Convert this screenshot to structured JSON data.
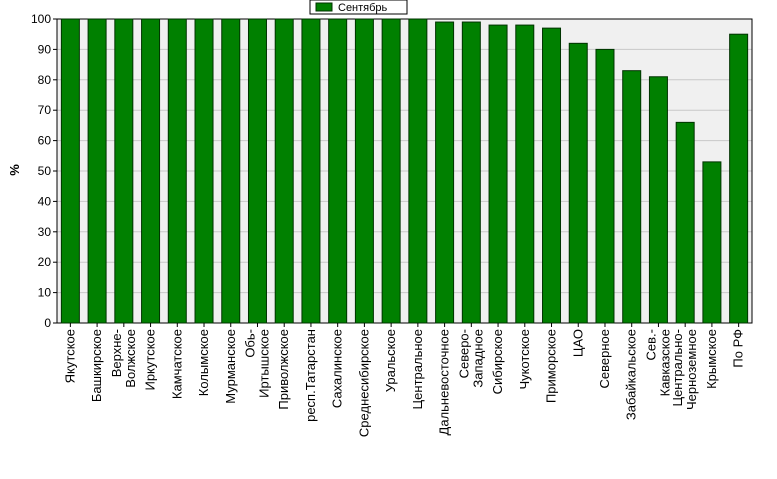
{
  "chart_data": {
    "type": "bar",
    "ylabel": "%",
    "ylim": [
      0,
      100
    ],
    "yticks": [
      0,
      10,
      20,
      30,
      40,
      50,
      60,
      70,
      80,
      90,
      100
    ],
    "grid": true,
    "legend_position": "top-center",
    "colors": {
      "bar": "#008000",
      "bar_edge": "#003300",
      "plot_bg": "#f0f0f0",
      "grid": "#c8c8c8"
    },
    "categories": [
      "Якутское",
      "Башкирское",
      "Верхне-Волжское",
      "Иркутское",
      "Камчатское",
      "Колымское",
      "Мурманское",
      "Обь-Иртышское",
      "Приволжское",
      "респ.Татарстан",
      "Сахалинское",
      "Среднесибирское",
      "Уральское",
      "Центральное",
      "Дальневосточное",
      "Северо-Западное",
      "Сибирское",
      "Чукотское",
      "Приморское",
      "ЦАО",
      "Северное",
      "Забайкальское",
      "Сев.-Кавказское",
      "Центрально-Черноземное",
      "Крымское",
      "По РФ"
    ],
    "category_lines": [
      [
        "Якутское"
      ],
      [
        "Башкирское"
      ],
      [
        "Верхне-",
        "Волжское"
      ],
      [
        "Иркутское"
      ],
      [
        "Камчатское"
      ],
      [
        "Колымское"
      ],
      [
        "Мурманское"
      ],
      [
        "Обь-",
        "Иртышское"
      ],
      [
        "Приволжское"
      ],
      [
        "респ.Татарстан"
      ],
      [
        "Сахалинское"
      ],
      [
        "Среднесибирское"
      ],
      [
        "Уральское"
      ],
      [
        "Центральное"
      ],
      [
        "Дальневосточное"
      ],
      [
        "Северо-",
        "Западное"
      ],
      [
        "Сибирское"
      ],
      [
        "Чукотское"
      ],
      [
        "Приморское"
      ],
      [
        "ЦАО"
      ],
      [
        "Северное"
      ],
      [
        "Забайкальское"
      ],
      [
        "Сев.-",
        "Кавказское"
      ],
      [
        "Центрально-",
        "Черноземное"
      ],
      [
        "Крымское"
      ],
      [
        "По РФ"
      ]
    ],
    "series": [
      {
        "name": "Сентябрь",
        "values": [
          100,
          100,
          100,
          100,
          100,
          100,
          100,
          100,
          100,
          100,
          100,
          100,
          100,
          100,
          99,
          99,
          98,
          98,
          97,
          92,
          90,
          83,
          81,
          66,
          53,
          95
        ]
      }
    ]
  }
}
